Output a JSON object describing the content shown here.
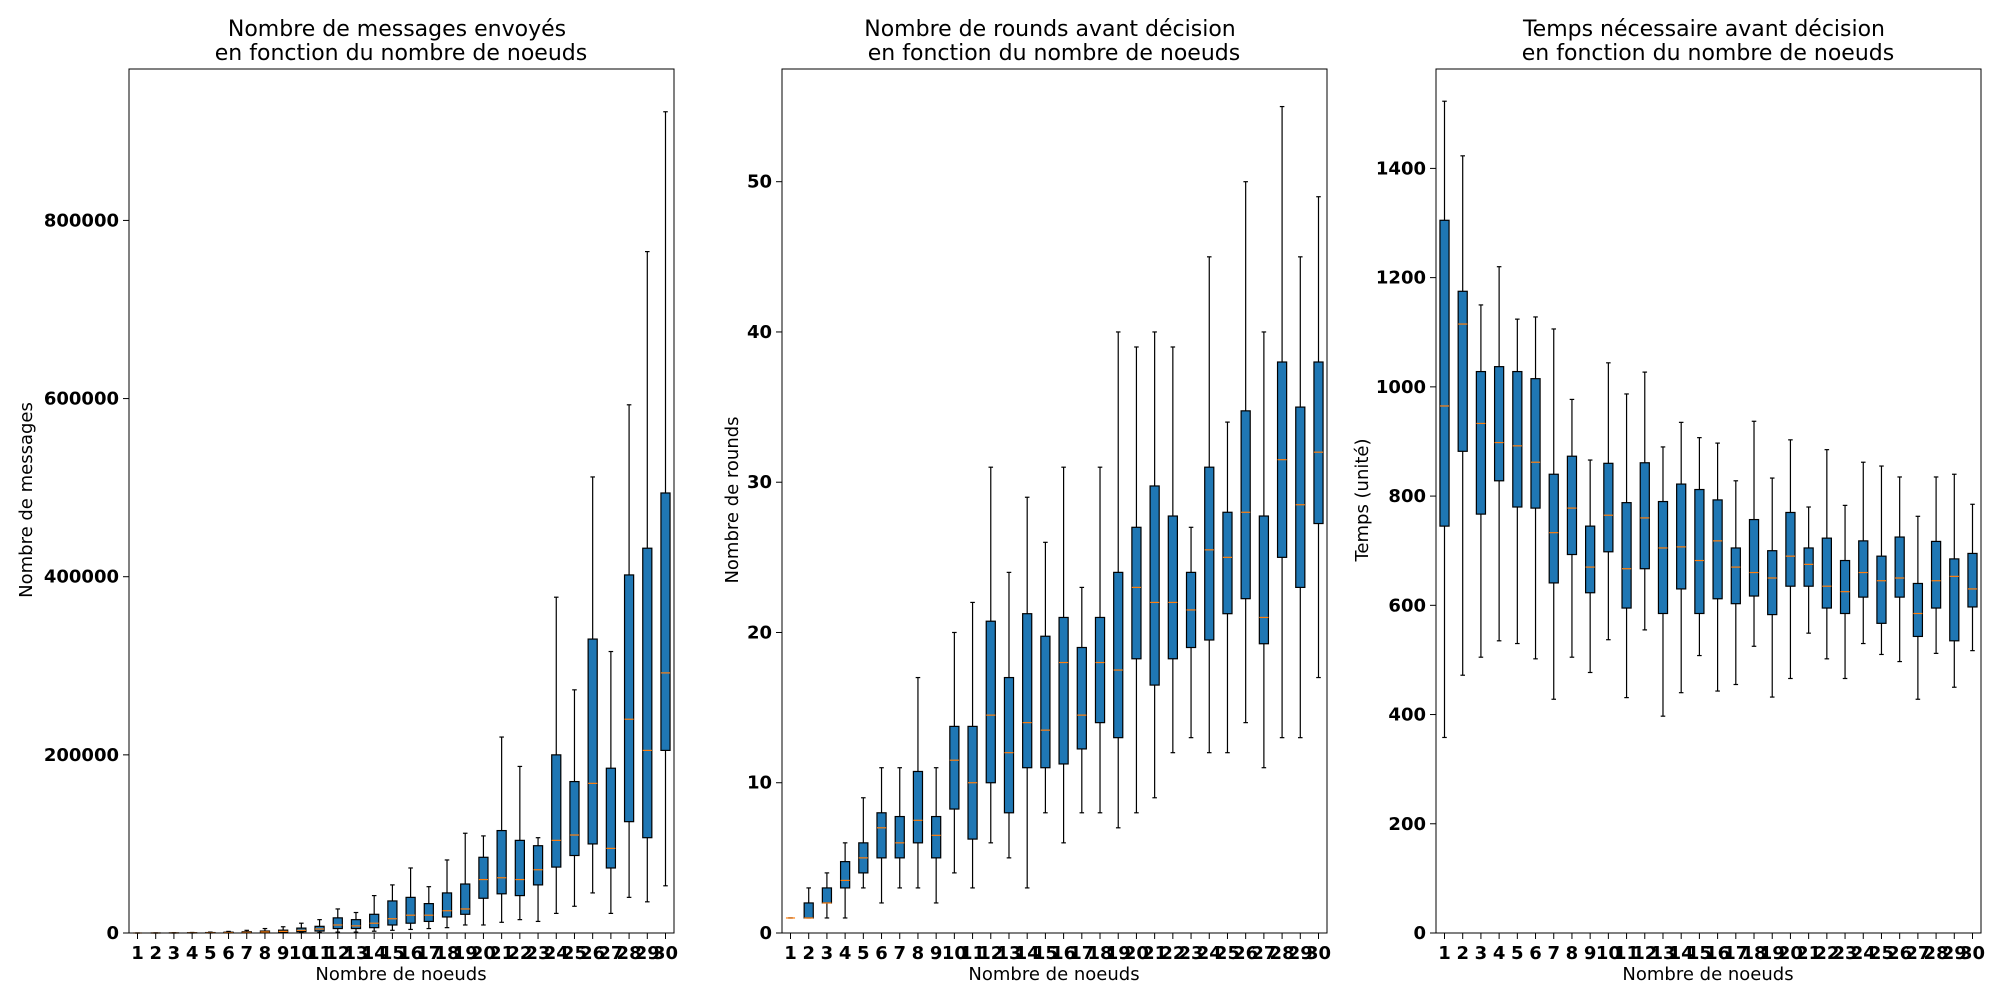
{
  "chart_data": [
    {
      "type": "boxplot",
      "title_line1": "Nombre de messages envoyés",
      "title_line2": "en fonction du nombre de noeuds",
      "xlabel": "Nombre de noeuds",
      "ylabel": "Nombre de messages",
      "ylim": [
        0,
        970000
      ],
      "yticks": [
        0,
        200000,
        400000,
        600000,
        800000
      ],
      "ytick_labels": [
        "0",
        "200000",
        "400000",
        "600000",
        "800000"
      ],
      "categories": [
        "1",
        "2",
        "3",
        "4",
        "5",
        "6",
        "7",
        "8",
        "9",
        "10",
        "11",
        "12",
        "13",
        "14",
        "15",
        "16",
        "17",
        "18",
        "19",
        "20",
        "21",
        "22",
        "23",
        "24",
        "25",
        "26",
        "27",
        "28",
        "29",
        "30"
      ],
      "boxes": [
        {
          "min": 0,
          "q1": 0,
          "median": 0,
          "q3": 0,
          "max": 0
        },
        {
          "min": 0,
          "q1": 10,
          "median": 20,
          "q3": 40,
          "max": 80
        },
        {
          "min": 0,
          "q1": 30,
          "median": 60,
          "q3": 120,
          "max": 250
        },
        {
          "min": 0,
          "q1": 60,
          "median": 150,
          "q3": 300,
          "max": 600
        },
        {
          "min": 0,
          "q1": 100,
          "median": 250,
          "q3": 500,
          "max": 1000
        },
        {
          "min": 50,
          "q1": 200,
          "median": 450,
          "q3": 900,
          "max": 1800
        },
        {
          "min": 100,
          "q1": 350,
          "median": 700,
          "q3": 1400,
          "max": 3000
        },
        {
          "min": 200,
          "q1": 600,
          "median": 1200,
          "q3": 2200,
          "max": 5000
        },
        {
          "min": 300,
          "q1": 900,
          "median": 1800,
          "q3": 3200,
          "max": 7000
        },
        {
          "min": 500,
          "q1": 1500,
          "median": 3000,
          "q3": 5500,
          "max": 11000
        },
        {
          "min": 700,
          "q1": 2200,
          "median": 4500,
          "q3": 7500,
          "max": 15000
        },
        {
          "min": 1000,
          "q1": 5000,
          "median": 9000,
          "q3": 17000,
          "max": 27000
        },
        {
          "min": 1000,
          "q1": 5000,
          "median": 8000,
          "q3": 15000,
          "max": 23000
        },
        {
          "min": 2000,
          "q1": 6000,
          "median": 11000,
          "q3": 21000,
          "max": 42000
        },
        {
          "min": 3000,
          "q1": 9000,
          "median": 16000,
          "q3": 36000,
          "max": 54000
        },
        {
          "min": 4000,
          "q1": 11000,
          "median": 20000,
          "q3": 40000,
          "max": 73000
        },
        {
          "min": 5000,
          "q1": 13000,
          "median": 20000,
          "q3": 33000,
          "max": 52000
        },
        {
          "min": 6000,
          "q1": 18000,
          "median": 25000,
          "q3": 45000,
          "max": 82000
        },
        {
          "min": 9000,
          "q1": 21000,
          "median": 27000,
          "q3": 55000,
          "max": 112000
        },
        {
          "min": 9000,
          "q1": 39000,
          "median": 60000,
          "q3": 85000,
          "max": 109000
        },
        {
          "min": 12000,
          "q1": 44000,
          "median": 62000,
          "q3": 115000,
          "max": 220000
        },
        {
          "min": 15000,
          "q1": 42000,
          "median": 60000,
          "q3": 104000,
          "max": 187000
        },
        {
          "min": 13000,
          "q1": 54000,
          "median": 71000,
          "q3": 98000,
          "max": 107000
        },
        {
          "min": 22000,
          "q1": 74000,
          "median": 104000,
          "q3": 200000,
          "max": 377000
        },
        {
          "min": 30000,
          "q1": 87000,
          "median": 110000,
          "q3": 170000,
          "max": 273000
        },
        {
          "min": 45000,
          "q1": 100000,
          "median": 168000,
          "q3": 330000,
          "max": 512000
        },
        {
          "min": 22000,
          "q1": 73000,
          "median": 95000,
          "q3": 185000,
          "max": 316000
        },
        {
          "min": 40000,
          "q1": 125000,
          "median": 240000,
          "q3": 402000,
          "max": 593000
        },
        {
          "min": 35000,
          "q1": 107000,
          "median": 205000,
          "q3": 432000,
          "max": 765000
        },
        {
          "min": 53000,
          "q1": 205000,
          "median": 292000,
          "q3": 494000,
          "max": 922000
        }
      ]
    },
    {
      "type": "boxplot",
      "title_line1": "Nombre de rounds avant décision",
      "title_line2": "en fonction du nombre de noeuds",
      "xlabel": "Nombre de noeuds",
      "ylabel": "Nombre de rounds",
      "ylim": [
        0,
        57.5
      ],
      "yticks": [
        0,
        10,
        20,
        30,
        40,
        50
      ],
      "ytick_labels": [
        "0",
        "10",
        "20",
        "30",
        "40",
        "50"
      ],
      "categories": [
        "1",
        "2",
        "3",
        "4",
        "5",
        "6",
        "7",
        "8",
        "9",
        "10",
        "11",
        "12",
        "13",
        "14",
        "15",
        "16",
        "17",
        "18",
        "19",
        "20",
        "21",
        "22",
        "23",
        "24",
        "25",
        "26",
        "27",
        "28",
        "29",
        "30"
      ],
      "boxes": [
        {
          "min": 1,
          "q1": 1,
          "median": 1,
          "q3": 1,
          "max": 1
        },
        {
          "min": 1,
          "q1": 1,
          "median": 1,
          "q3": 2,
          "max": 3
        },
        {
          "min": 1,
          "q1": 2,
          "median": 2,
          "q3": 3,
          "max": 4
        },
        {
          "min": 1,
          "q1": 3,
          "median": 3.5,
          "q3": 4.75,
          "max": 6
        },
        {
          "min": 3,
          "q1": 4,
          "median": 5,
          "q3": 6,
          "max": 9
        },
        {
          "min": 2,
          "q1": 5,
          "median": 7,
          "q3": 8,
          "max": 11
        },
        {
          "min": 3,
          "q1": 5,
          "median": 6,
          "q3": 7.75,
          "max": 11
        },
        {
          "min": 3,
          "q1": 6,
          "median": 7.5,
          "q3": 10.75,
          "max": 17
        },
        {
          "min": 2,
          "q1": 5,
          "median": 6.5,
          "q3": 7.75,
          "max": 11
        },
        {
          "min": 4,
          "q1": 8.25,
          "median": 11.5,
          "q3": 13.75,
          "max": 20
        },
        {
          "min": 3,
          "q1": 6.25,
          "median": 10,
          "q3": 13.75,
          "max": 22
        },
        {
          "min": 6,
          "q1": 10,
          "median": 14.5,
          "q3": 20.75,
          "max": 31
        },
        {
          "min": 5,
          "q1": 8,
          "median": 12,
          "q3": 17,
          "max": 24
        },
        {
          "min": 3,
          "q1": 11,
          "median": 14,
          "q3": 21.25,
          "max": 29
        },
        {
          "min": 8,
          "q1": 11,
          "median": 13.5,
          "q3": 19.75,
          "max": 26
        },
        {
          "min": 6,
          "q1": 11.25,
          "median": 18,
          "q3": 21,
          "max": 31
        },
        {
          "min": 8,
          "q1": 12.25,
          "median": 14.5,
          "q3": 19,
          "max": 23
        },
        {
          "min": 8,
          "q1": 14,
          "median": 18,
          "q3": 21,
          "max": 31
        },
        {
          "min": 7,
          "q1": 13,
          "median": 17.5,
          "q3": 24,
          "max": 40
        },
        {
          "min": 8,
          "q1": 18.25,
          "median": 23,
          "q3": 27,
          "max": 39
        },
        {
          "min": 9,
          "q1": 16.5,
          "median": 22,
          "q3": 29.75,
          "max": 40
        },
        {
          "min": 12,
          "q1": 18.25,
          "median": 22,
          "q3": 27.75,
          "max": 39
        },
        {
          "min": 13,
          "q1": 19,
          "median": 21.5,
          "q3": 24,
          "max": 27
        },
        {
          "min": 12,
          "q1": 19.5,
          "median": 25.5,
          "q3": 31,
          "max": 45
        },
        {
          "min": 12,
          "q1": 21.25,
          "median": 25,
          "q3": 28,
          "max": 34
        },
        {
          "min": 14,
          "q1": 22.25,
          "median": 28,
          "q3": 34.75,
          "max": 50
        },
        {
          "min": 11,
          "q1": 19.25,
          "median": 21,
          "q3": 27.75,
          "max": 40
        },
        {
          "min": 13,
          "q1": 25,
          "median": 31.5,
          "q3": 38,
          "max": 55
        },
        {
          "min": 13,
          "q1": 23,
          "median": 28.5,
          "q3": 35,
          "max": 45
        },
        {
          "min": 17,
          "q1": 27.25,
          "median": 32,
          "q3": 38,
          "max": 49
        }
      ]
    },
    {
      "type": "boxplot",
      "title_line1": "Temps nécessaire avant décision",
      "title_line2": "en fonction du nombre de noeuds",
      "xlabel": "Nombre de noeuds",
      "ylabel": "Temps (unité)",
      "ylim": [
        0,
        1582
      ],
      "yticks": [
        0,
        200,
        400,
        600,
        800,
        1000,
        1200,
        1400
      ],
      "ytick_labels": [
        "0",
        "200",
        "400",
        "600",
        "800",
        "1000",
        "1200",
        "1400"
      ],
      "categories": [
        "1",
        "2",
        "3",
        "4",
        "5",
        "6",
        "7",
        "8",
        "9",
        "10",
        "11",
        "12",
        "13",
        "14",
        "15",
        "16",
        "17",
        "18",
        "19",
        "20",
        "21",
        "22",
        "23",
        "24",
        "25",
        "26",
        "27",
        "28",
        "29",
        "30"
      ],
      "boxes": [
        {
          "min": 358,
          "q1": 745,
          "median": 965,
          "q3": 1305,
          "max": 1523
        },
        {
          "min": 472,
          "q1": 882,
          "median": 1115,
          "q3": 1175,
          "max": 1423
        },
        {
          "min": 505,
          "q1": 767,
          "median": 933,
          "q3": 1028,
          "max": 1150
        },
        {
          "min": 535,
          "q1": 828,
          "median": 898,
          "q3": 1037,
          "max": 1220
        },
        {
          "min": 530,
          "q1": 780,
          "median": 892,
          "q3": 1028,
          "max": 1124
        },
        {
          "min": 502,
          "q1": 778,
          "median": 862,
          "q3": 1015,
          "max": 1128
        },
        {
          "min": 428,
          "q1": 641,
          "median": 733,
          "q3": 840,
          "max": 1106
        },
        {
          "min": 505,
          "q1": 693,
          "median": 778,
          "q3": 873,
          "max": 977
        },
        {
          "min": 477,
          "q1": 623,
          "median": 670,
          "q3": 745,
          "max": 866
        },
        {
          "min": 537,
          "q1": 698,
          "median": 765,
          "q3": 860,
          "max": 1044
        },
        {
          "min": 431,
          "q1": 595,
          "median": 667,
          "q3": 788,
          "max": 987
        },
        {
          "min": 555,
          "q1": 667,
          "median": 760,
          "q3": 861,
          "max": 1027
        },
        {
          "min": 397,
          "q1": 585,
          "median": 705,
          "q3": 790,
          "max": 890
        },
        {
          "min": 440,
          "q1": 630,
          "median": 707,
          "q3": 822,
          "max": 935
        },
        {
          "min": 508,
          "q1": 585,
          "median": 682,
          "q3": 812,
          "max": 907
        },
        {
          "min": 443,
          "q1": 612,
          "median": 718,
          "q3": 793,
          "max": 897
        },
        {
          "min": 455,
          "q1": 603,
          "median": 670,
          "q3": 705,
          "max": 828
        },
        {
          "min": 525,
          "q1": 617,
          "median": 660,
          "q3": 757,
          "max": 937
        },
        {
          "min": 432,
          "q1": 583,
          "median": 650,
          "q3": 700,
          "max": 833
        },
        {
          "min": 466,
          "q1": 635,
          "median": 690,
          "q3": 770,
          "max": 903
        },
        {
          "min": 549,
          "q1": 635,
          "median": 675,
          "q3": 705,
          "max": 780
        },
        {
          "min": 502,
          "q1": 595,
          "median": 635,
          "q3": 723,
          "max": 885
        },
        {
          "min": 466,
          "q1": 585,
          "median": 625,
          "q3": 682,
          "max": 783
        },
        {
          "min": 530,
          "q1": 615,
          "median": 660,
          "q3": 718,
          "max": 862
        },
        {
          "min": 510,
          "q1": 567,
          "median": 645,
          "q3": 690,
          "max": 855
        },
        {
          "min": 497,
          "q1": 615,
          "median": 650,
          "q3": 725,
          "max": 835
        },
        {
          "min": 428,
          "q1": 543,
          "median": 585,
          "q3": 640,
          "max": 763
        },
        {
          "min": 512,
          "q1": 595,
          "median": 645,
          "q3": 717,
          "max": 835
        },
        {
          "min": 450,
          "q1": 535,
          "median": 653,
          "q3": 685,
          "max": 840
        },
        {
          "min": 517,
          "q1": 597,
          "median": 630,
          "q3": 695,
          "max": 785
        }
      ]
    }
  ]
}
